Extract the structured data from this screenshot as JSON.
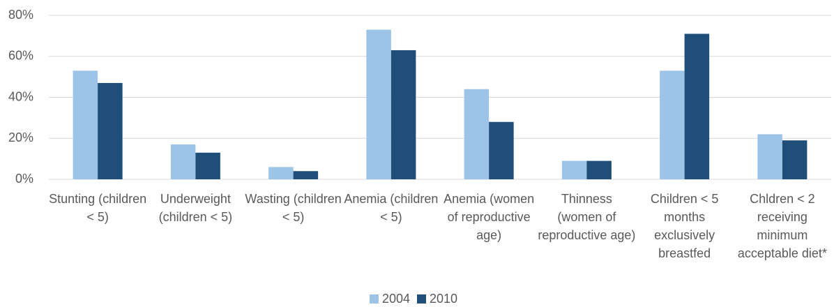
{
  "chart_data": {
    "type": "bar",
    "categories": [
      "Stunting (children < 5)",
      "Underweight (children < 5)",
      "Wasting (children < 5)",
      "Anemia (children < 5)",
      "Anemia (women of reproductive age)",
      "Thinness (women of reproductive age)",
      "Children < 5 months exclusively breastfed",
      "Chldren < 2 receiving minimum acceptable diet*"
    ],
    "series": [
      {
        "name": "2004",
        "color": "#9dc3e6",
        "values": [
          53,
          17,
          6,
          73,
          44,
          9,
          53,
          22
        ]
      },
      {
        "name": "2010",
        "color": "#1f4e79",
        "values": [
          47,
          13,
          4,
          63,
          28,
          9,
          71,
          19
        ]
      }
    ],
    "ylim": [
      0,
      80
    ],
    "yticks": [
      {
        "value": 0,
        "label": "0%"
      },
      {
        "value": 20,
        "label": "20%"
      },
      {
        "value": 40,
        "label": "40%"
      },
      {
        "value": 60,
        "label": "60%"
      },
      {
        "value": 80,
        "label": "80%"
      }
    ],
    "grid": true,
    "legend": "bottom"
  }
}
